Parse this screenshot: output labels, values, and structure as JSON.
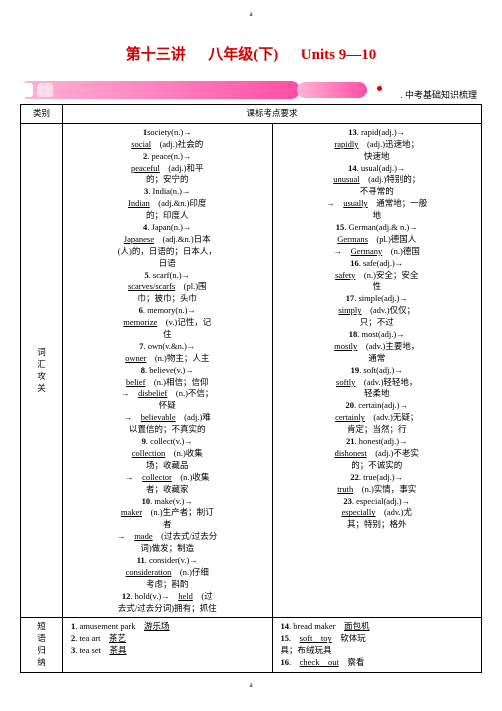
{
  "top_letter": "a",
  "title": {
    "p1": "第十三讲",
    "sp": "　",
    "p2": "八年级(下)",
    "sp2": "　",
    "p3": "Units 9—10"
  },
  "banner_label": ". 中考基础知识梳理",
  "header": {
    "c1": "类别",
    "c2": "课标考点要求"
  },
  "row_label_1": "词\n汇\n攻\n关",
  "col2": [
    {
      "n": "1",
      "b": "societ",
      "t": "y(n.)→"
    },
    {
      "u": "social",
      "t2": "　(adj.)社会的"
    },
    {
      "n": "2",
      "b": ". peace(",
      "t": "n.)→"
    },
    {
      "u": "peaceful",
      "t2": "　(adj.)和平"
    },
    {
      "t2": "的；安宁的"
    },
    {
      "n": "3",
      "b": ". India(",
      "t": "n.)→"
    },
    {
      "u": "Indian",
      "t2": "　(adj.&n.)印度"
    },
    {
      "t2": "的；印度人"
    },
    {
      "n": "4",
      "b": ". Japan(",
      "t": "n.)→"
    },
    {
      "u": "Japanese",
      "t2": "　(adj.&n.)日本"
    },
    {
      "t2": "(人)的，日语的；日本人，"
    },
    {
      "t2": "日语"
    },
    {
      "n": "5",
      "b": ". scarf(",
      "t": "n.)→"
    },
    {
      "u": "scarves/scarfs",
      "t2": "　(pl.)围"
    },
    {
      "t2": "巾；披巾；头巾"
    },
    {
      "n": "6",
      "b": ". memory(",
      "t": "n.)→"
    },
    {
      "u": "memorize",
      "t2": "　(v.)记性，记"
    },
    {
      "t2": "住"
    },
    {
      "n": "7",
      "b": ". own(",
      "t": "v.&n.)→"
    },
    {
      "u": "owner",
      "t2": "　(n.)物主；人主"
    },
    {
      "n": "8",
      "b": ". believe(",
      "t": "v.)→"
    },
    {
      "u": "belief",
      "t2": "　(n.)相信；信仰"
    },
    {
      "t2": "→　",
      "u2": "disbelief",
      "t3": "　(n.)不信；"
    },
    {
      "t2": "怀疑"
    },
    {
      "t2": "→　",
      "u2": "believable",
      "t3": "　(adj.)难"
    },
    {
      "t2": "以置信的；不真实的"
    },
    {
      "n": "9",
      "b": ". collect(",
      "t": "v.)→"
    },
    {
      "u": "collection",
      "t2": "　(n.)收集"
    },
    {
      "t2": "场；收藏品"
    },
    {
      "t2": "→　",
      "u2": "collector",
      "t3": "　(n.)收集"
    },
    {
      "t2": "者；收藏家"
    },
    {
      "n": "10",
      "b": ". make(",
      "t": "v.)→"
    },
    {
      "u": "maker",
      "t2": "　(n.)生产者；制订"
    },
    {
      "t2": "者"
    },
    {
      "t2": "→　",
      "u2": "made",
      "t3": "　(过去式/过去分"
    },
    {
      "t2": "词)做发；制造"
    },
    {
      "n": "11",
      "b": ". consider(",
      "t": "v.)→"
    },
    {
      "u": "consideration",
      "t2": "　(n.)仔细"
    },
    {
      "t2": "考虑；斟酌"
    },
    {
      "n": "12",
      "b": ". hold(",
      "t": "v.)→　",
      "u2": "held",
      "t3": "　(过"
    },
    {
      "t2": "去式/过去分词)拥有；抓住"
    }
  ],
  "col3": [
    {
      "n": "13",
      "b": ". rapid(",
      "t": "adj.)→"
    },
    {
      "u": "rapidly",
      "t2": "　(adj.)迅速地；"
    },
    {
      "t2": "快速地"
    },
    {
      "n": "14",
      "b": ". usual(",
      "t": "adj.)→"
    },
    {
      "u": "unusual",
      "t2": "　(adj.)特别的；"
    },
    {
      "t2": "不寻常的"
    },
    {
      "t2": "→　",
      "u2": "usually",
      "t3": "　通常地；一般"
    },
    {
      "t2": "地"
    },
    {
      "n": "15",
      "b": ". German(",
      "t": "adj.& n.)→"
    },
    {
      "u": "Germans",
      "t2": "　(pl.)德国人"
    },
    {
      "t2": "→　",
      "u2": "Germany",
      "t3": "　(n.)德国"
    },
    {
      "n": "16",
      "b": ". safe(",
      "t": "adj.)→"
    },
    {
      "u": "safety",
      "t2": "　(n.)安全；安全"
    },
    {
      "t2": "性"
    },
    {
      "n": "17",
      "b": ". simple(",
      "t": "adj.)→"
    },
    {
      "u": "simply",
      "t2": "　(adv.)仅仅；"
    },
    {
      "t2": "只；不过"
    },
    {
      "n": "18",
      "b": ". most(",
      "t": "adj.)→"
    },
    {
      "u": "mostly",
      "t2": "　(adv.)主要地，"
    },
    {
      "t2": "通常"
    },
    {
      "n": "19",
      "b": ". soft(",
      "t": "adj.)→"
    },
    {
      "u": "softly",
      "t2": "　(adv.)轻轻地，"
    },
    {
      "t2": "轻柔地"
    },
    {
      "n": "20",
      "b": ". certain(",
      "t": "adj.)→"
    },
    {
      "u": "certainly",
      "t2": "　(adv.)无疑；"
    },
    {
      "t2": "肯定；当然；行"
    },
    {
      "n": "21",
      "b": ". honest(",
      "t": "adj.)→"
    },
    {
      "u": "dishonest",
      "t2": "　(adj.)不老实"
    },
    {
      "t2": "的；不诚实的"
    },
    {
      "n": "22",
      "b": ". true(",
      "t": "adj.)→"
    },
    {
      "u": "truth",
      "t2": "　(n.)实情，事实"
    },
    {
      "n": "23",
      "b": ". especial(",
      "t": "adj.)→"
    },
    {
      "u": "especially",
      "t2": "　(adv.)尤"
    },
    {
      "t2": "其；特别；格外"
    }
  ],
  "row_label_2": "短\n语\n归\n纳",
  "r2c2": [
    {
      "n": "1",
      "t": ". amusement park　",
      "u": "游乐场"
    },
    {
      "t": ""
    },
    {
      "n": "2",
      "t": ". tea art　",
      "u": "茶艺"
    },
    {
      "n": "3",
      "t": ". tea set　",
      "u": "茶具"
    }
  ],
  "r2c3": [
    {
      "n": "14",
      "t": ". bread maker　",
      "u": "面包机"
    },
    {
      "n": "15",
      "t": ".　",
      "u": "soft　toy",
      "t2": "　软体玩"
    },
    {
      "t": "具；布绒玩具"
    },
    {
      "n": "16",
      "t": ".　",
      "u": "check　out",
      "t2": "　察看"
    }
  ],
  "bot_letter": "a"
}
